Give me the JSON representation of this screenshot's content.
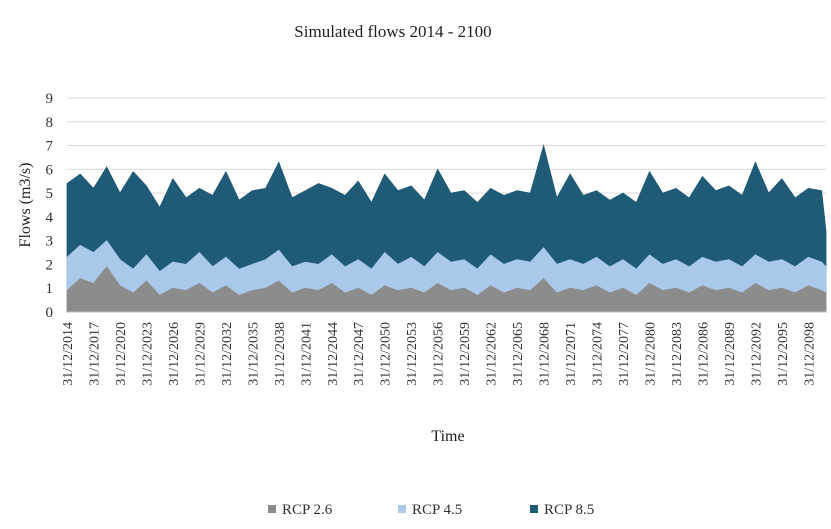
{
  "chart_data": {
    "type": "area",
    "title": "Simulated flows 2014  - 2100",
    "xlabel": "Time",
    "ylabel": "Flows  (m3/s)",
    "ylim": [
      0,
      9
    ],
    "yticks": [
      0,
      1,
      2,
      3,
      4,
      5,
      6,
      7,
      8,
      9
    ],
    "x_range": [
      "31/12/2014",
      "31/12/2100"
    ],
    "x_tick_labels": [
      "31/12/2014",
      "31/12/2017",
      "31/12/2020",
      "31/12/2023",
      "31/12/2026",
      "31/12/2029",
      "31/12/2032",
      "31/12/2035",
      "31/12/2038",
      "31/12/2041",
      "31/12/2044",
      "31/12/2047",
      "31/12/2050",
      "31/12/2053",
      "31/12/2056",
      "31/12/2059",
      "31/12/2062",
      "31/12/2065",
      "31/12/2068",
      "31/12/2071",
      "31/12/2074",
      "31/12/2077",
      "31/12/2080",
      "31/12/2083",
      "31/12/2086",
      "31/12/2089",
      "31/12/2092",
      "31/12/2095",
      "31/12/2098"
    ],
    "grid": true,
    "legend_position": "bottom",
    "series": [
      {
        "name": "RCP 2.6",
        "color": "#8c8c8c",
        "x": [
          2014.0,
          2015.5,
          2017.0,
          2018.5,
          2020.0,
          2021.5,
          2023.0,
          2024.5,
          2026.0,
          2027.5,
          2029.0,
          2030.5,
          2032.0,
          2033.5,
          2035.0,
          2036.5,
          2038.0,
          2039.5,
          2041.0,
          2042.5,
          2044.0,
          2045.5,
          2047.0,
          2048.5,
          2050.0,
          2051.5,
          2053.0,
          2054.5,
          2056.0,
          2057.5,
          2059.0,
          2060.5,
          2062.0,
          2063.5,
          2065.0,
          2066.5,
          2068.0,
          2069.5,
          2071.0,
          2072.5,
          2074.0,
          2075.5,
          2077.0,
          2078.5,
          2080.0,
          2081.5,
          2083.0,
          2084.5,
          2086.0,
          2087.5,
          2089.0,
          2090.5,
          2092.0,
          2093.5,
          2095.0,
          2096.5,
          2098.0,
          2099.5,
          2100.0
        ],
        "values": [
          0.9,
          1.4,
          1.2,
          1.9,
          1.1,
          0.8,
          1.3,
          0.7,
          1.0,
          0.9,
          1.2,
          0.8,
          1.1,
          0.7,
          0.9,
          1.0,
          1.3,
          0.8,
          1.0,
          0.9,
          1.2,
          0.8,
          1.0,
          0.7,
          1.1,
          0.9,
          1.0,
          0.8,
          1.2,
          0.9,
          1.0,
          0.7,
          1.1,
          0.8,
          1.0,
          0.9,
          1.4,
          0.8,
          1.0,
          0.9,
          1.1,
          0.8,
          1.0,
          0.7,
          1.2,
          0.9,
          1.0,
          0.8,
          1.1,
          0.9,
          1.0,
          0.8,
          1.2,
          0.9,
          1.0,
          0.8,
          1.1,
          0.9,
          0.8
        ]
      },
      {
        "name": "RCP 4.5",
        "color": "#a9c8ea",
        "x": [
          2014.0,
          2015.5,
          2017.0,
          2018.5,
          2020.0,
          2021.5,
          2023.0,
          2024.5,
          2026.0,
          2027.5,
          2029.0,
          2030.5,
          2032.0,
          2033.5,
          2035.0,
          2036.5,
          2038.0,
          2039.5,
          2041.0,
          2042.5,
          2044.0,
          2045.5,
          2047.0,
          2048.5,
          2050.0,
          2051.5,
          2053.0,
          2054.5,
          2056.0,
          2057.5,
          2059.0,
          2060.5,
          2062.0,
          2063.5,
          2065.0,
          2066.5,
          2068.0,
          2069.5,
          2071.0,
          2072.5,
          2074.0,
          2075.5,
          2077.0,
          2078.5,
          2080.0,
          2081.5,
          2083.0,
          2084.5,
          2086.0,
          2087.5,
          2089.0,
          2090.5,
          2092.0,
          2093.5,
          2095.0,
          2096.5,
          2098.0,
          2099.5,
          2100.0
        ],
        "values": [
          2.3,
          2.8,
          2.5,
          3.0,
          2.2,
          1.8,
          2.4,
          1.7,
          2.1,
          2.0,
          2.5,
          1.9,
          2.3,
          1.8,
          2.0,
          2.2,
          2.6,
          1.9,
          2.1,
          2.0,
          2.4,
          1.9,
          2.2,
          1.8,
          2.5,
          2.0,
          2.3,
          1.9,
          2.5,
          2.1,
          2.2,
          1.8,
          2.4,
          2.0,
          2.2,
          2.1,
          2.7,
          2.0,
          2.2,
          2.0,
          2.3,
          1.9,
          2.2,
          1.8,
          2.4,
          2.0,
          2.2,
          1.9,
          2.3,
          2.1,
          2.2,
          1.9,
          2.4,
          2.1,
          2.2,
          1.9,
          2.3,
          2.1,
          1.9
        ]
      },
      {
        "name": "RCP 8.5",
        "color": "#1f5b77",
        "x": [
          2014.0,
          2015.5,
          2017.0,
          2018.5,
          2020.0,
          2021.5,
          2023.0,
          2024.5,
          2026.0,
          2027.5,
          2029.0,
          2030.5,
          2032.0,
          2033.5,
          2035.0,
          2036.5,
          2038.0,
          2039.5,
          2041.0,
          2042.5,
          2044.0,
          2045.5,
          2047.0,
          2048.5,
          2050.0,
          2051.5,
          2053.0,
          2054.5,
          2056.0,
          2057.5,
          2059.0,
          2060.5,
          2062.0,
          2063.5,
          2065.0,
          2066.5,
          2068.0,
          2069.5,
          2071.0,
          2072.5,
          2074.0,
          2075.5,
          2077.0,
          2078.5,
          2080.0,
          2081.5,
          2083.0,
          2084.5,
          2086.0,
          2087.5,
          2089.0,
          2090.5,
          2092.0,
          2093.5,
          2095.0,
          2096.5,
          2098.0,
          2099.5,
          2100.0
        ],
        "values": [
          5.4,
          5.8,
          5.2,
          6.1,
          5.0,
          5.9,
          5.3,
          4.4,
          5.6,
          4.8,
          5.2,
          4.9,
          5.9,
          4.7,
          5.1,
          5.2,
          6.3,
          4.8,
          5.1,
          5.4,
          5.2,
          4.9,
          5.5,
          4.6,
          5.8,
          5.1,
          5.3,
          4.7,
          6.0,
          5.0,
          5.1,
          4.6,
          5.2,
          4.9,
          5.1,
          5.0,
          7.0,
          4.8,
          5.8,
          4.9,
          5.1,
          4.7,
          5.0,
          4.6,
          5.9,
          5.0,
          5.2,
          4.8,
          5.7,
          5.1,
          5.3,
          4.9,
          6.3,
          5.0,
          5.6,
          4.8,
          5.2,
          5.1,
          3.4
        ]
      }
    ]
  }
}
